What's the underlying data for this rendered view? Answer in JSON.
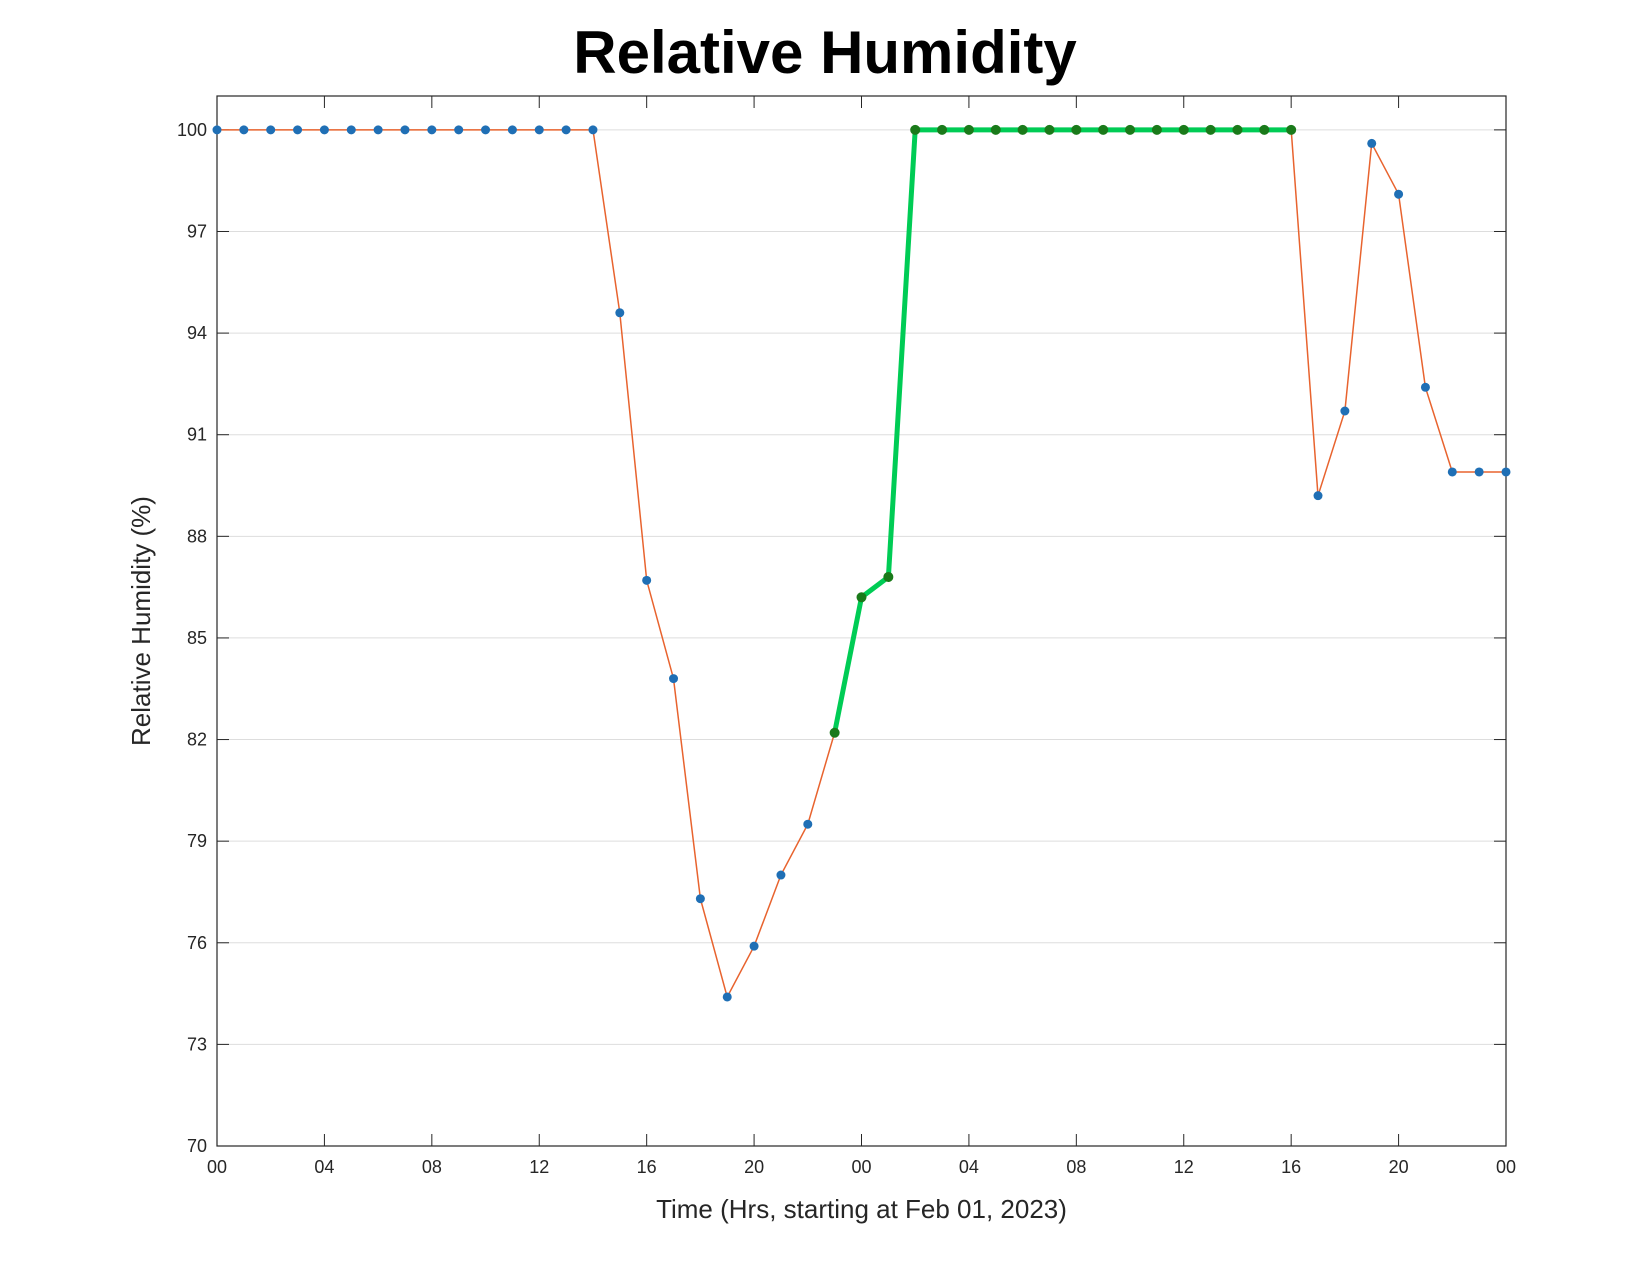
{
  "chart_data": {
    "type": "line",
    "title": "Relative Humidity",
    "xlabel": "Time (Hrs, starting at Feb 01, 2023)",
    "ylabel": "Relative Humidity (%)",
    "x_unit": "hours",
    "xlim": [
      0,
      48
    ],
    "ylim": [
      70,
      101
    ],
    "x_ticks": [
      0,
      4,
      8,
      12,
      16,
      20,
      24,
      28,
      32,
      36,
      40,
      44,
      48
    ],
    "x_tick_labels": [
      "00",
      "04",
      "08",
      "12",
      "16",
      "20",
      "00",
      "04",
      "08",
      "12",
      "16",
      "20",
      "00"
    ],
    "y_ticks": [
      70,
      73,
      76,
      79,
      82,
      85,
      88,
      91,
      94,
      97,
      100
    ],
    "grid": "horizontal",
    "colors": {
      "line": "#e8632e",
      "marker": "#1f6fb5",
      "highlight_line": "#00cc55",
      "highlight_marker": "#1a7a1a",
      "grid": "#dddddd",
      "axis": "#262626"
    },
    "series": [
      {
        "values": [
          {
            "x": 0,
            "y": 100
          },
          {
            "x": 1,
            "y": 100
          },
          {
            "x": 2,
            "y": 100
          },
          {
            "x": 3,
            "y": 100
          },
          {
            "x": 4,
            "y": 100
          },
          {
            "x": 5,
            "y": 100
          },
          {
            "x": 6,
            "y": 100
          },
          {
            "x": 7,
            "y": 100
          },
          {
            "x": 8,
            "y": 100
          },
          {
            "x": 9,
            "y": 100
          },
          {
            "x": 10,
            "y": 100
          },
          {
            "x": 11,
            "y": 100
          },
          {
            "x": 12,
            "y": 100
          },
          {
            "x": 13,
            "y": 100
          },
          {
            "x": 14,
            "y": 100
          },
          {
            "x": 15,
            "y": 94.6
          },
          {
            "x": 16,
            "y": 86.7
          },
          {
            "x": 17,
            "y": 83.8
          },
          {
            "x": 18,
            "y": 77.3
          },
          {
            "x": 19,
            "y": 74.4
          },
          {
            "x": 20,
            "y": 75.9
          },
          {
            "x": 21,
            "y": 78.0
          },
          {
            "x": 22,
            "y": 79.5
          },
          {
            "x": 23,
            "y": 82.2
          },
          {
            "x": 24,
            "y": 86.2
          },
          {
            "x": 25,
            "y": 86.8
          },
          {
            "x": 26,
            "y": 100
          },
          {
            "x": 27,
            "y": 100
          },
          {
            "x": 28,
            "y": 100
          },
          {
            "x": 29,
            "y": 100
          },
          {
            "x": 30,
            "y": 100
          },
          {
            "x": 31,
            "y": 100
          },
          {
            "x": 32,
            "y": 100
          },
          {
            "x": 33,
            "y": 100
          },
          {
            "x": 34,
            "y": 100
          },
          {
            "x": 35,
            "y": 100
          },
          {
            "x": 36,
            "y": 100
          },
          {
            "x": 37,
            "y": 100
          },
          {
            "x": 38,
            "y": 100
          },
          {
            "x": 39,
            "y": 100
          },
          {
            "x": 40,
            "y": 100
          },
          {
            "x": 41,
            "y": 89.2
          },
          {
            "x": 42,
            "y": 91.7
          },
          {
            "x": 43,
            "y": 99.6
          },
          {
            "x": 44,
            "y": 98.1
          },
          {
            "x": 45,
            "y": 92.4
          },
          {
            "x": 46,
            "y": 89.9
          },
          {
            "x": 47,
            "y": 89.9
          },
          {
            "x": 48,
            "y": 89.9
          }
        ]
      }
    ],
    "highlight_range": [
      23,
      40
    ]
  }
}
